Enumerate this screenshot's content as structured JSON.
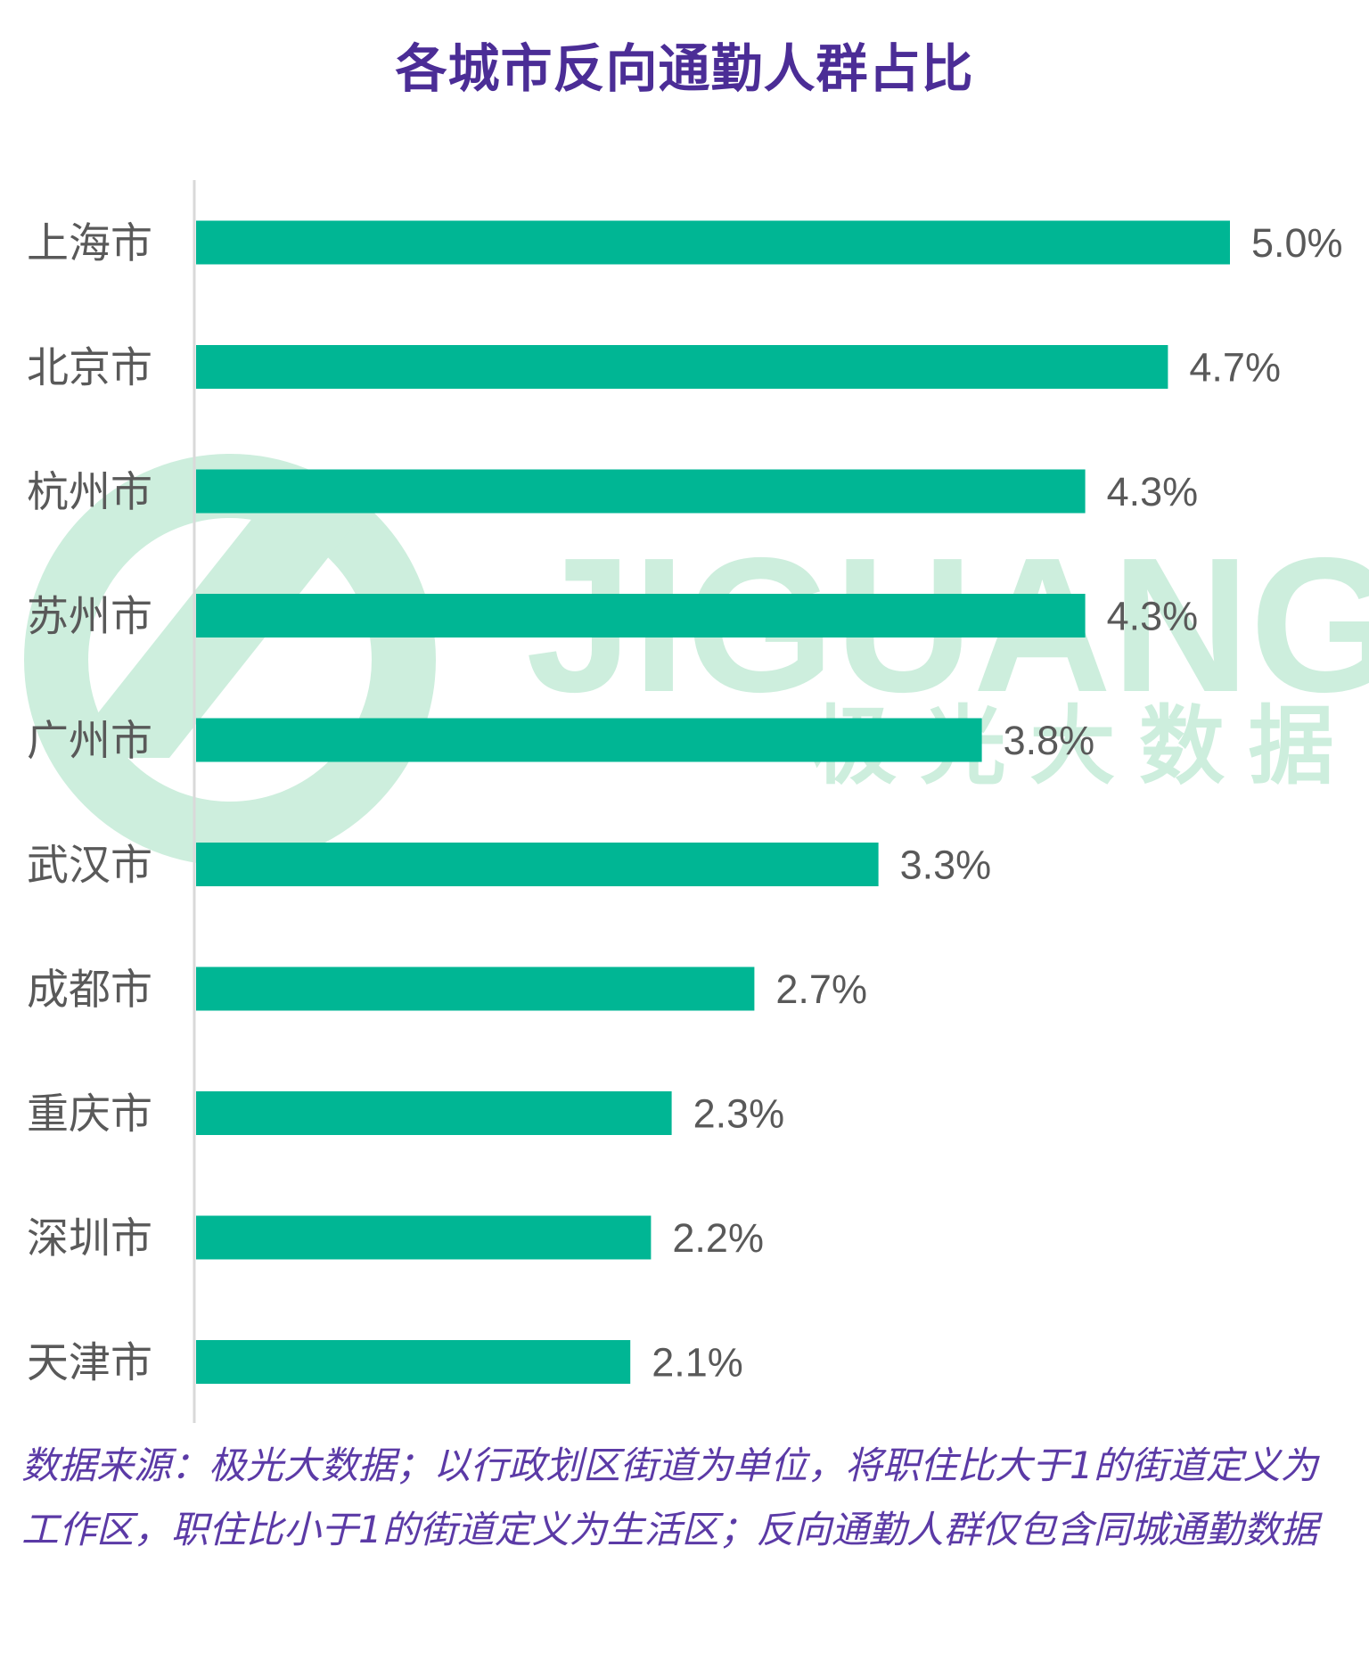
{
  "title": "各城市反向通勤人群占比",
  "watermark": {
    "brand": "JIGUANG",
    "subtitle": "极 光 大 数 据",
    "color": "#cdeedd"
  },
  "colors": {
    "bar": "#00b694",
    "title": "#4b2d96",
    "note": "#5b3aa6",
    "label": "#595959",
    "axis": "#d9d9d9"
  },
  "chart_data": {
    "type": "bar",
    "orientation": "horizontal",
    "categories": [
      "上海市",
      "北京市",
      "杭州市",
      "苏州市",
      "广州市",
      "武汉市",
      "成都市",
      "重庆市",
      "深圳市",
      "天津市"
    ],
    "values": [
      5.0,
      4.7,
      4.3,
      4.3,
      3.8,
      3.3,
      2.7,
      2.3,
      2.2,
      2.1
    ],
    "value_labels": [
      "5.0%",
      "4.7%",
      "4.3%",
      "4.3%",
      "3.8%",
      "3.3%",
      "2.7%",
      "2.3%",
      "2.2%",
      "2.1%"
    ],
    "unit": "%",
    "title": "各城市反向通勤人群占比",
    "xlabel": "",
    "ylabel": "",
    "xlim": [
      0,
      5.0
    ],
    "grid": false,
    "legend": "none"
  },
  "source_note": "数据来源：极光大数据；以行政划区街道为单位，将职住比大于1的街道定义为工作区，职住比小于1的街道定义为生活区；反向通勤人群仅包含同城通勤数据"
}
